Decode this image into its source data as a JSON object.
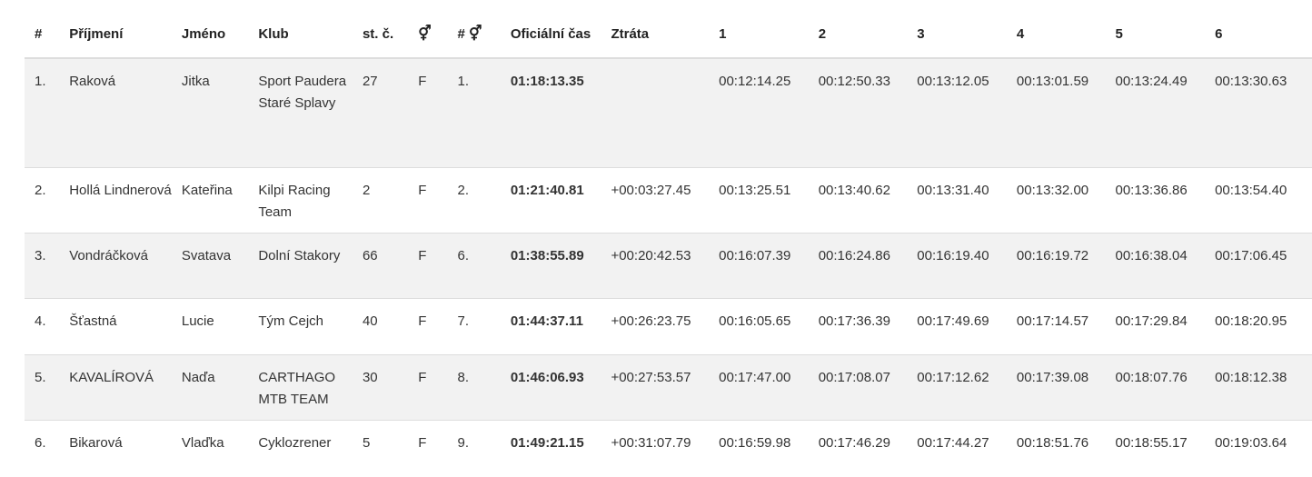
{
  "headers": {
    "rank": "#",
    "surname": "Příjmení",
    "first_name": "Jméno",
    "club": "Klub",
    "start_no": "st. č.",
    "gender_icon": "⚥",
    "gender_rank_prefix": "#",
    "official_time": "Oficiální čas",
    "loss": "Ztráta",
    "laps": [
      "1",
      "2",
      "3",
      "4",
      "5",
      "6"
    ]
  },
  "rows": [
    {
      "rank": "1.",
      "surname": "Raková",
      "first_name": "Jitka",
      "club": "Sport Paudera Staré Splavy",
      "start_no": "27",
      "gender": "F",
      "gender_rank": "1.",
      "time": "01:18:13.35",
      "loss": "",
      "laps": [
        "00:12:14.25",
        "00:12:50.33",
        "00:13:12.05",
        "00:13:01.59",
        "00:13:24.49",
        "00:13:30.63"
      ]
    },
    {
      "rank": "2.",
      "surname": "Hollá Lindnerová",
      "first_name": "Kateřina",
      "club": "Kilpi Racing Team",
      "start_no": "2",
      "gender": "F",
      "gender_rank": "2.",
      "time": "01:21:40.81",
      "loss": "+00:03:27.45",
      "laps": [
        "00:13:25.51",
        "00:13:40.62",
        "00:13:31.40",
        "00:13:32.00",
        "00:13:36.86",
        "00:13:54.40"
      ]
    },
    {
      "rank": "3.",
      "surname": "Vondráčková",
      "first_name": "Svatava",
      "club": "Dolní Stakory",
      "start_no": "66",
      "gender": "F",
      "gender_rank": "6.",
      "time": "01:38:55.89",
      "loss": "+00:20:42.53",
      "laps": [
        "00:16:07.39",
        "00:16:24.86",
        "00:16:19.40",
        "00:16:19.72",
        "00:16:38.04",
        "00:17:06.45"
      ]
    },
    {
      "rank": "4.",
      "surname": "Šťastná",
      "first_name": "Lucie",
      "club": "Tým Cejch",
      "start_no": "40",
      "gender": "F",
      "gender_rank": "7.",
      "time": "01:44:37.11",
      "loss": "+00:26:23.75",
      "laps": [
        "00:16:05.65",
        "00:17:36.39",
        "00:17:49.69",
        "00:17:14.57",
        "00:17:29.84",
        "00:18:20.95"
      ]
    },
    {
      "rank": "5.",
      "surname": "KAVALÍROVÁ",
      "first_name": "Naďa",
      "club": "CARTHAGO MTB TEAM",
      "start_no": "30",
      "gender": "F",
      "gender_rank": "8.",
      "time": "01:46:06.93",
      "loss": "+00:27:53.57",
      "laps": [
        "00:17:47.00",
        "00:17:08.07",
        "00:17:12.62",
        "00:17:39.08",
        "00:18:07.76",
        "00:18:12.38"
      ]
    },
    {
      "rank": "6.",
      "surname": "Bikarová",
      "first_name": "Vlaďka",
      "club": "Cyklozrener",
      "start_no": "5",
      "gender": "F",
      "gender_rank": "9.",
      "time": "01:49:21.15",
      "loss": "+00:31:07.79",
      "laps": [
        "00:16:59.98",
        "00:17:46.29",
        "00:17:44.27",
        "00:18:51.76",
        "00:18:55.17",
        "00:19:03.64"
      ]
    }
  ]
}
